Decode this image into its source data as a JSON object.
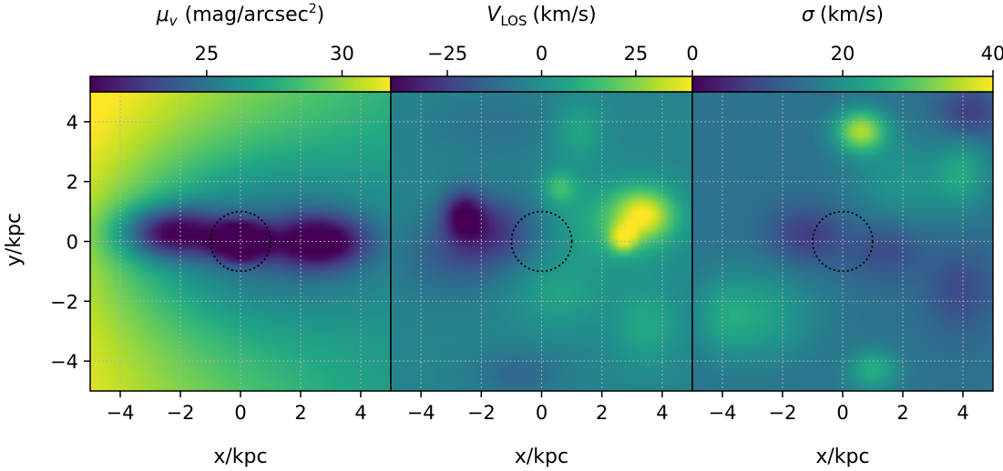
{
  "chart_data": [
    {
      "type": "heatmap",
      "quantity": "surface brightness",
      "colorbar": {
        "label_parts": [
          "μ",
          "v",
          "(mag/arcsec",
          "2",
          ")"
        ],
        "range": [
          20.7,
          31.8
        ],
        "ticks": [
          25,
          30
        ],
        "tick_labels": [
          "25",
          "30"
        ]
      },
      "xlabel": "x/kpc",
      "ylabel": "y/kpc",
      "xlim": [
        -5,
        5
      ],
      "ylim": [
        -5,
        5
      ],
      "xticks": [
        -4,
        -2,
        0,
        2,
        4
      ],
      "xtick_labels": [
        "−4",
        "−2",
        "0",
        "2",
        "4"
      ],
      "yticks": [
        4,
        2,
        0,
        -2,
        -4
      ],
      "ytick_labels": [
        "4",
        "2",
        "0",
        "−2",
        "−4"
      ],
      "grid": true,
      "circle": {
        "center": [
          0,
          0
        ],
        "radius_kpc": 1,
        "style": "dotted"
      },
      "features": [
        {
          "x": 0,
          "y": 0,
          "sx": 0.6,
          "sy": 0.4,
          "value": -9.5
        },
        {
          "x": -2.3,
          "y": 0.3,
          "sx": 1.2,
          "sy": 0.6,
          "value": -6.5
        },
        {
          "x": 2.6,
          "y": 0.0,
          "sx": 1.1,
          "sy": 0.6,
          "value": -6.0
        },
        {
          "x": 0,
          "y": 0,
          "sx": 3.3,
          "sy": 2.0,
          "value": -3.5
        },
        {
          "x": 0,
          "y": 0,
          "sx": 4.3,
          "sy": 3.2,
          "value": -1.5
        }
      ],
      "background": {
        "base": 29.8,
        "gradient": [
          -0.45,
          0.1
        ]
      }
    },
    {
      "type": "heatmap",
      "quantity": "line-of-sight velocity",
      "colorbar": {
        "label_parts": [
          "V",
          "LOS",
          "(km/s)"
        ],
        "range": [
          -40,
          40
        ],
        "ticks": [
          -25,
          0,
          25
        ],
        "tick_labels": [
          "−25",
          "0",
          "25"
        ]
      },
      "xlabel": "x/kpc",
      "xlim": [
        -5,
        5
      ],
      "ylim": [
        -5,
        5
      ],
      "xticks": [
        -4,
        -2,
        0,
        2,
        4
      ],
      "xtick_labels": [
        "−4",
        "−2",
        "0",
        "2",
        "4"
      ],
      "grid": true,
      "circle": {
        "center": [
          0,
          0
        ],
        "radius_kpc": 1,
        "style": "dotted"
      },
      "features": [
        {
          "x": -2.6,
          "y": 0.9,
          "sx": 0.45,
          "sy": 0.55,
          "value": -30
        },
        {
          "x": -1.6,
          "y": 0.4,
          "sx": 1.0,
          "sy": 0.8,
          "value": -22
        },
        {
          "x": -3.0,
          "y": -0.5,
          "sx": 1.2,
          "sy": 0.9,
          "value": -12
        },
        {
          "x": 3.4,
          "y": 0.9,
          "sx": 0.7,
          "sy": 0.6,
          "value": 34
        },
        {
          "x": 2.7,
          "y": 0.1,
          "sx": 0.3,
          "sy": 0.3,
          "value": 32
        },
        {
          "x": 2.5,
          "y": 0.6,
          "sx": 1.4,
          "sy": 1.0,
          "value": 15
        },
        {
          "x": 0.6,
          "y": 1.8,
          "sx": 0.4,
          "sy": 0.4,
          "value": 18
        },
        {
          "x": 1.2,
          "y": 3.7,
          "sx": 0.6,
          "sy": 0.7,
          "value": 12
        },
        {
          "x": 3.5,
          "y": -2.8,
          "sx": 0.8,
          "sy": 0.9,
          "value": 12
        },
        {
          "x": 0.6,
          "y": -1.8,
          "sx": 1.0,
          "sy": 0.8,
          "value": 10
        },
        {
          "x": -0.8,
          "y": -4.4,
          "sx": 1.0,
          "sy": 0.5,
          "value": -10
        },
        {
          "x": -1.5,
          "y": 3.9,
          "sx": 1.5,
          "sy": 0.8,
          "value": -6
        }
      ],
      "background": {
        "base": -4,
        "gradient": [
          0,
          0
        ]
      }
    },
    {
      "type": "heatmap",
      "quantity": "velocity dispersion",
      "colorbar": {
        "label_parts": [
          "σ",
          "(km/s)"
        ],
        "range": [
          0,
          40
        ],
        "ticks": [
          0,
          20,
          40
        ],
        "tick_labels": [
          "0",
          "20",
          "40"
        ]
      },
      "xlabel": "x/kpc",
      "xlim": [
        -5,
        5
      ],
      "ylim": [
        -5,
        5
      ],
      "xticks": [
        -4,
        -2,
        0,
        2,
        4
      ],
      "xtick_labels": [
        "−4",
        "−2",
        "0",
        "2",
        "4"
      ],
      "grid": true,
      "circle": {
        "center": [
          0,
          0
        ],
        "radius_kpc": 1,
        "style": "dotted"
      },
      "features": [
        {
          "x": 0.6,
          "y": 3.7,
          "sx": 0.6,
          "sy": 0.5,
          "value": 20
        },
        {
          "x": -2.5,
          "y": -2.5,
          "sx": 1.2,
          "sy": 1.1,
          "value": 7
        },
        {
          "x": 2.0,
          "y": 2.0,
          "sx": 1.2,
          "sy": 1.0,
          "value": 6
        },
        {
          "x": 4.0,
          "y": 2.3,
          "sx": 0.6,
          "sy": 0.8,
          "value": 8
        },
        {
          "x": -4.0,
          "y": -2.5,
          "sx": 0.8,
          "sy": 1.0,
          "value": 6
        },
        {
          "x": 1.0,
          "y": -4.3,
          "sx": 0.6,
          "sy": 0.5,
          "value": 10
        },
        {
          "x": -1.2,
          "y": 0.2,
          "sx": 0.9,
          "sy": 0.7,
          "value": -8
        },
        {
          "x": 1.4,
          "y": -0.3,
          "sx": 0.9,
          "sy": 0.7,
          "value": -6
        },
        {
          "x": 4.2,
          "y": 4.3,
          "sx": 0.7,
          "sy": 0.6,
          "value": -8
        },
        {
          "x": 3.9,
          "y": -1.6,
          "sx": 0.8,
          "sy": 1.0,
          "value": -6
        }
      ],
      "background": {
        "base": 15,
        "gradient": [
          0,
          0
        ]
      }
    }
  ]
}
